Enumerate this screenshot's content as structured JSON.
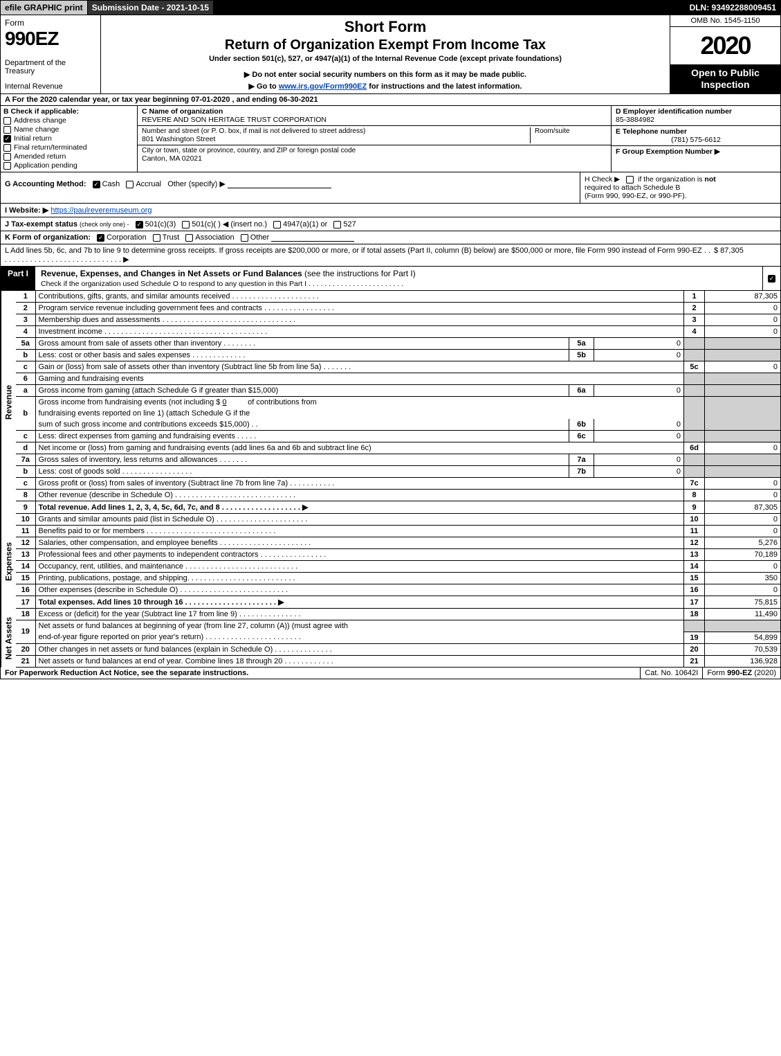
{
  "topbar": {
    "efile": "efile GRAPHIC print",
    "submission": "Submission Date - 2021-10-15",
    "dln": "DLN: 93492288009451"
  },
  "header": {
    "form_word": "Form",
    "form_number": "990EZ",
    "dept1": "Department of the Treasury",
    "dept2": "Internal Revenue",
    "short": "Short Form",
    "return": "Return of Organization Exempt From Income Tax",
    "under": "Under section 501(c), 527, or 4947(a)(1) of the Internal Revenue Code (except private foundations)",
    "warn": "▶ Do not enter social security numbers on this form as it may be made public.",
    "goto_pre": "▶ Go to ",
    "goto_link": "www.irs.gov/Form990EZ",
    "goto_post": " for instructions and the latest information.",
    "omb": "OMB No. 1545-1150",
    "year": "2020",
    "open": "Open to Public Inspection"
  },
  "lineA": "A For the 2020 calendar year, or tax year beginning 07-01-2020 , and ending 06-30-2021",
  "B": {
    "heading": "B  Check if applicable:",
    "address_change": "Address change",
    "name_change": "Name change",
    "initial_return": "Initial return",
    "final_return": "Final return/terminated",
    "amended": "Amended return",
    "pending": "Application pending",
    "initial_checked": true
  },
  "C": {
    "name_lbl": "C Name of organization",
    "name": "REVERE AND SON HERITAGE TRUST CORPORATION",
    "street_lbl": "Number and street (or P. O. box, if mail is not delivered to street address)",
    "street": "801 Washington Street",
    "room_lbl": "Room/suite",
    "city_lbl": "City or town, state or province, country, and ZIP or foreign postal code",
    "city": "Canton, MA  02021"
  },
  "D": {
    "ein_lbl": "D Employer identification number",
    "ein": "85-3884982",
    "phone_lbl": "E Telephone number",
    "phone": "(781) 575-6612",
    "group_lbl": "F Group Exemption Number  ▶"
  },
  "G": {
    "label": "G Accounting Method:",
    "cash": "Cash",
    "accrual": "Accrual",
    "other": "Other (specify) ▶",
    "cash_checked": true
  },
  "H": {
    "text1": "H  Check ▶",
    "text2": "if the organization is",
    "not": "not",
    "text3": "required to attach Schedule B",
    "text4": "(Form 990, 990-EZ, or 990-PF)."
  },
  "I": {
    "label": "I Website: ▶",
    "url": "https://paulreveremuseum.org"
  },
  "J": {
    "label": "J Tax-exempt status",
    "sub": "(check only one) -",
    "o1": "501(c)(3)",
    "o2": "501(c)(  ) ◀ (insert no.)",
    "o3": "4947(a)(1) or",
    "o4": "527",
    "o1_checked": true
  },
  "K": {
    "label": "K Form of organization:",
    "corp": "Corporation",
    "trust": "Trust",
    "assoc": "Association",
    "other": "Other",
    "corp_checked": true
  },
  "L": {
    "text": "L Add lines 5b, 6c, and 7b to line 9 to determine gross receipts. If gross receipts are $200,000 or more, or if total assets (Part II, column (B) below) are $500,000 or more, file Form 990 instead of Form 990-EZ . . . . . . . . . . . . . . . . . . . . . . . . . . . . . . ▶",
    "amount": "$ 87,305"
  },
  "partI": {
    "tab": "Part I",
    "title": "Revenue, Expenses, and Changes in Net Assets or Fund Balances",
    "title_sub": "(see the instructions for Part I)",
    "checknote": "Check if the organization used Schedule O to respond to any question in this Part I . . . . . . . . . . . . . . . . . . . . . . . ."
  },
  "revenue_side": "Revenue",
  "expenses_side": "Expenses",
  "netassets_side": "Net Assets",
  "rows_rev": [
    {
      "n": "1",
      "desc": "Contributions, gifts, grants, and similar amounts received . . . . . . . . . . . . . . . . . . . . .",
      "idx": "1",
      "amt": "87,305"
    },
    {
      "n": "2",
      "desc": "Program service revenue including government fees and contracts . . . . . . . . . . . . . . . . .",
      "idx": "2",
      "amt": "0"
    },
    {
      "n": "3",
      "desc": "Membership dues and assessments . . . . . . . . . . . . . . . . . . . . . . . . . . . . . . . .",
      "idx": "3",
      "amt": "0"
    },
    {
      "n": "4",
      "desc": "Investment income . . . . . . . . . . . . . . . . . . . . . . . . . . . . . . . . . . . . . . .",
      "idx": "4",
      "amt": "0"
    }
  ],
  "row5a": {
    "n": "5a",
    "desc": "Gross amount from sale of assets other than inventory . . . . . . . .",
    "sub": "5a",
    "val": "0"
  },
  "row5b": {
    "n": "b",
    "desc": "Less: cost or other basis and sales expenses . . . . . . . . . . . . .",
    "sub": "5b",
    "val": "0"
  },
  "row5c": {
    "n": "c",
    "desc": "Gain or (loss) from sale of assets other than inventory (Subtract line 5b from line 5a) . . . . . . .",
    "idx": "5c",
    "amt": "0"
  },
  "row6": {
    "n": "6",
    "desc": "Gaming and fundraising events"
  },
  "row6a": {
    "n": "a",
    "desc": "Gross income from gaming (attach Schedule G if greater than $15,000)",
    "sub": "6a",
    "val": "0"
  },
  "row6b": {
    "n": "b",
    "desc1": "Gross income from fundraising events (not including $",
    "desc1b": "0",
    "desc1c": "of contributions from",
    "desc2": "fundraising events reported on line 1) (attach Schedule G if the",
    "desc3": "sum of such gross income and contributions exceeds $15,000)  . .",
    "sub": "6b",
    "val": "0"
  },
  "row6c": {
    "n": "c",
    "desc": "Less: direct expenses from gaming and fundraising events  . . . . .",
    "sub": "6c",
    "val": "0"
  },
  "row6d": {
    "n": "d",
    "desc": "Net income or (loss) from gaming and fundraising events (add lines 6a and 6b and subtract line 6c)",
    "idx": "6d",
    "amt": "0"
  },
  "row7a": {
    "n": "7a",
    "desc": "Gross sales of inventory, less returns and allowances . . . . . . .",
    "sub": "7a",
    "val": "0"
  },
  "row7b": {
    "n": "b",
    "desc": "Less: cost of goods sold    . . . . . . . . . . . . . . . . .",
    "sub": "7b",
    "val": "0"
  },
  "row7c": {
    "n": "c",
    "desc": "Gross profit or (loss) from sales of inventory (Subtract line 7b from line 7a) . . . . . . . . . . .",
    "idx": "7c",
    "amt": "0"
  },
  "row8": {
    "n": "8",
    "desc": "Other revenue (describe in Schedule O) . . . . . . . . . . . . . . . . . . . . . . . . . . . . .",
    "idx": "8",
    "amt": "0"
  },
  "row9": {
    "n": "9",
    "desc": "Total revenue. Add lines 1, 2, 3, 4, 5c, 6d, 7c, and 8  . . . . . . . . . . . . . . . . . . .  ▶",
    "idx": "9",
    "amt": "87,305",
    "bold": true
  },
  "rows_exp": [
    {
      "n": "10",
      "desc": "Grants and similar amounts paid (list in Schedule O) . . . . . . . . . . . . . . . . . . . . . .",
      "idx": "10",
      "amt": "0"
    },
    {
      "n": "11",
      "desc": "Benefits paid to or for members   . . . . . . . . . . . . . . . . . . . . . . . . . . . . . . .",
      "idx": "11",
      "amt": "0"
    },
    {
      "n": "12",
      "desc": "Salaries, other compensation, and employee benefits . . . . . . . . . . . . . . . . . . . . . .",
      "idx": "12",
      "amt": "5,276"
    },
    {
      "n": "13",
      "desc": "Professional fees and other payments to independent contractors . . . . . . . . . . . . . . . .",
      "idx": "13",
      "amt": "70,189"
    },
    {
      "n": "14",
      "desc": "Occupancy, rent, utilities, and maintenance . . . . . . . . . . . . . . . . . . . . . . . . . . .",
      "idx": "14",
      "amt": "0"
    },
    {
      "n": "15",
      "desc": "Printing, publications, postage, and shipping. . . . . . . . . . . . . . . . . . . . . . . . . .",
      "idx": "15",
      "amt": "350"
    },
    {
      "n": "16",
      "desc": "Other expenses (describe in Schedule O)    . . . . . . . . . . . . . . . . . . . . . . . . . .",
      "idx": "16",
      "amt": "0"
    },
    {
      "n": "17",
      "desc": "Total expenses. Add lines 10 through 16    . . . . . . . . . . . . . . . . . . . . . .  ▶",
      "idx": "17",
      "amt": "75,815",
      "bold": true
    }
  ],
  "rows_net": [
    {
      "n": "18",
      "desc": "Excess or (deficit) for the year (Subtract line 17 from line 9)     . . . . . . . . . . . . . . .",
      "idx": "18",
      "amt": "11,490"
    },
    {
      "n": "19",
      "desc": "Net assets or fund balances at beginning of year (from line 27, column (A)) (must agree with",
      "desc2": "end-of-year figure reported on prior year's return) . . . . . . . . . . . . . . . . . . . . . . .",
      "idx": "19",
      "amt": "54,899",
      "two": true
    },
    {
      "n": "20",
      "desc": "Other changes in net assets or fund balances (explain in Schedule O) . . . . . . . . . . . . . .",
      "idx": "20",
      "amt": "70,539"
    },
    {
      "n": "21",
      "desc": "Net assets or fund balances at end of year. Combine lines 18 through 20 . . . . . . . . . . . .",
      "idx": "21",
      "amt": "136,928"
    }
  ],
  "footer": {
    "left": "For Paperwork Reduction Act Notice, see the separate instructions.",
    "center": "Cat. No. 10642I",
    "right_pre": "Form ",
    "right_bold": "990-EZ",
    "right_post": " (2020)"
  }
}
